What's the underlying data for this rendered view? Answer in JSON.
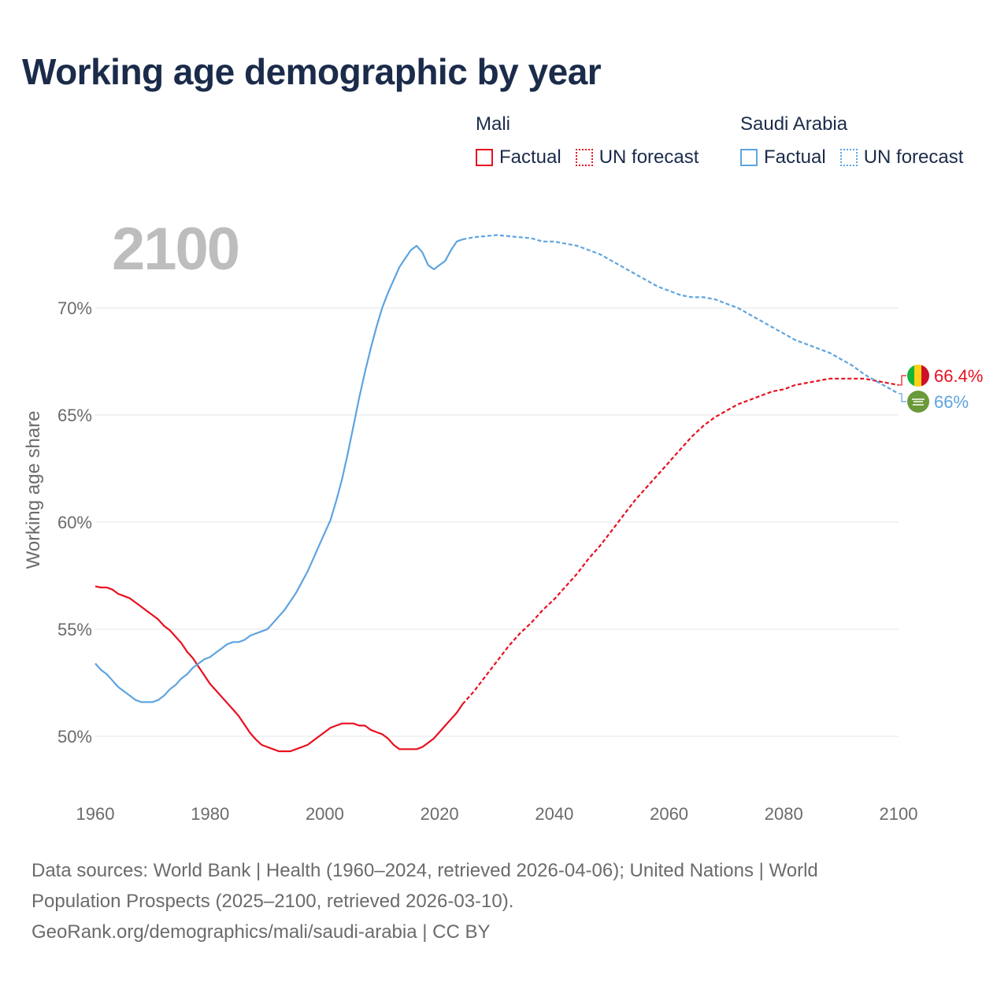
{
  "title": "Working age demographic by year",
  "year_overlay": "2100",
  "legend": [
    {
      "country": "Mali",
      "color": "#e8101f",
      "factual_label": "Factual",
      "forecast_label": "UN forecast"
    },
    {
      "country": "Saudi Arabia",
      "color": "#5ea4e0",
      "factual_label": "Factual",
      "forecast_label": "UN forecast"
    }
  ],
  "footer": {
    "line1": "Data sources: World Bank | Health (1960–2024, retrieved 2026-04-06); United Nations | World",
    "line2": "Population Prospects (2025–2100, retrieved 2026-03-10).",
    "line3": "GeoRank.org/demographics/mali/saudi-arabia | CC BY"
  },
  "chart_data": {
    "type": "line",
    "title": "Working age demographic by year",
    "xlabel": "",
    "ylabel": "Working age share",
    "xlim": [
      1960,
      2100
    ],
    "ylim": [
      48,
      74
    ],
    "x_ticks": [
      1960,
      1980,
      2000,
      2020,
      2040,
      2060,
      2080,
      2100
    ],
    "x_tick_labels": [
      "1960",
      "1980",
      "2000",
      "2020",
      "2040",
      "2060",
      "2080",
      "2100"
    ],
    "y_ticks": [
      50,
      55,
      60,
      65,
      70
    ],
    "y_tick_labels": [
      "50%",
      "55%",
      "60%",
      "65%",
      "70%"
    ],
    "grid": true,
    "series": [
      {
        "name": "Mali",
        "color": "#e8101f",
        "end_label": "66.4%",
        "factual": {
          "label": "Factual",
          "x": [
            1960,
            1961,
            1962,
            1963,
            1964,
            1965,
            1966,
            1967,
            1968,
            1969,
            1970,
            1971,
            1972,
            1973,
            1974,
            1975,
            1976,
            1977,
            1978,
            1979,
            1980,
            1981,
            1982,
            1983,
            1984,
            1985,
            1986,
            1987,
            1988,
            1989,
            1990,
            1991,
            1992,
            1993,
            1994,
            1995,
            1996,
            1997,
            1998,
            1999,
            2000,
            2001,
            2002,
            2003,
            2004,
            2005,
            2006,
            2007,
            2008,
            2009,
            2010,
            2011,
            2012,
            2013,
            2014,
            2015,
            2016,
            2017,
            2018,
            2019,
            2020,
            2021,
            2022,
            2023,
            2024
          ],
          "y": [
            57.0,
            56.95,
            56.95,
            56.85,
            56.65,
            56.55,
            56.45,
            56.25,
            56.05,
            55.85,
            55.65,
            55.45,
            55.15,
            54.95,
            54.65,
            54.35,
            53.95,
            53.65,
            53.25,
            52.85,
            52.45,
            52.15,
            51.85,
            51.55,
            51.25,
            50.95,
            50.55,
            50.15,
            49.85,
            49.6,
            49.5,
            49.4,
            49.3,
            49.3,
            49.3,
            49.4,
            49.5,
            49.6,
            49.8,
            50.0,
            50.2,
            50.4,
            50.5,
            50.6,
            50.6,
            50.6,
            50.5,
            50.5,
            50.3,
            50.2,
            50.1,
            49.9,
            49.6,
            49.4,
            49.4,
            49.4,
            49.4,
            49.5,
            49.7,
            49.9,
            50.2,
            50.5,
            50.8,
            51.1,
            51.5
          ]
        },
        "forecast": {
          "label": "UN forecast",
          "x": [
            2024,
            2026,
            2028,
            2030,
            2032,
            2034,
            2036,
            2038,
            2040,
            2042,
            2044,
            2046,
            2048,
            2050,
            2052,
            2054,
            2056,
            2058,
            2060,
            2062,
            2064,
            2066,
            2068,
            2070,
            2072,
            2074,
            2076,
            2078,
            2080,
            2082,
            2084,
            2086,
            2088,
            2090,
            2092,
            2094,
            2096,
            2098,
            2100
          ],
          "y": [
            51.5,
            52.1,
            52.8,
            53.5,
            54.2,
            54.8,
            55.3,
            55.9,
            56.4,
            57.0,
            57.6,
            58.3,
            58.9,
            59.6,
            60.3,
            61.0,
            61.6,
            62.2,
            62.8,
            63.4,
            64.0,
            64.5,
            64.9,
            65.2,
            65.5,
            65.7,
            65.9,
            66.1,
            66.2,
            66.4,
            66.5,
            66.6,
            66.7,
            66.7,
            66.7,
            66.7,
            66.6,
            66.5,
            66.4
          ]
        }
      },
      {
        "name": "Saudi Arabia",
        "color": "#5ea4e0",
        "end_label": "66%",
        "factual": {
          "label": "Factual",
          "x": [
            1960,
            1961,
            1962,
            1963,
            1964,
            1965,
            1966,
            1967,
            1968,
            1969,
            1970,
            1971,
            1972,
            1973,
            1974,
            1975,
            1976,
            1977,
            1978,
            1979,
            1980,
            1981,
            1982,
            1983,
            1984,
            1985,
            1986,
            1987,
            1988,
            1989,
            1990,
            1991,
            1992,
            1993,
            1994,
            1995,
            1996,
            1997,
            1998,
            1999,
            2000,
            2001,
            2002,
            2003,
            2004,
            2005,
            2006,
            2007,
            2008,
            2009,
            2010,
            2011,
            2012,
            2013,
            2014,
            2015,
            2016,
            2017,
            2018,
            2019,
            2020,
            2021,
            2022,
            2023,
            2024
          ],
          "y": [
            53.4,
            53.1,
            52.9,
            52.6,
            52.3,
            52.1,
            51.9,
            51.7,
            51.6,
            51.6,
            51.6,
            51.7,
            51.9,
            52.2,
            52.4,
            52.7,
            52.9,
            53.2,
            53.4,
            53.6,
            53.7,
            53.9,
            54.1,
            54.3,
            54.4,
            54.4,
            54.5,
            54.7,
            54.8,
            54.9,
            55.0,
            55.3,
            55.6,
            55.9,
            56.3,
            56.7,
            57.2,
            57.7,
            58.3,
            58.9,
            59.5,
            60.1,
            61.0,
            62.0,
            63.2,
            64.5,
            65.8,
            67.0,
            68.1,
            69.1,
            70.0,
            70.7,
            71.3,
            71.9,
            72.3,
            72.7,
            72.9,
            72.6,
            72.0,
            71.8,
            72.0,
            72.2,
            72.7,
            73.1,
            73.2
          ]
        },
        "forecast": {
          "label": "UN forecast",
          "x": [
            2024,
            2026,
            2028,
            2030,
            2032,
            2034,
            2036,
            2038,
            2040,
            2042,
            2044,
            2046,
            2048,
            2050,
            2052,
            2054,
            2056,
            2058,
            2060,
            2062,
            2064,
            2066,
            2068,
            2070,
            2072,
            2074,
            2076,
            2078,
            2080,
            2082,
            2084,
            2086,
            2088,
            2090,
            2092,
            2094,
            2096,
            2098,
            2100
          ],
          "y": [
            73.2,
            73.3,
            73.35,
            73.4,
            73.35,
            73.3,
            73.25,
            73.1,
            73.1,
            73.0,
            72.9,
            72.7,
            72.5,
            72.2,
            71.9,
            71.6,
            71.3,
            71.0,
            70.8,
            70.6,
            70.5,
            70.5,
            70.4,
            70.2,
            70.0,
            69.7,
            69.4,
            69.1,
            68.8,
            68.5,
            68.3,
            68.1,
            67.9,
            67.6,
            67.3,
            66.9,
            66.6,
            66.3,
            66.0
          ]
        }
      }
    ]
  }
}
